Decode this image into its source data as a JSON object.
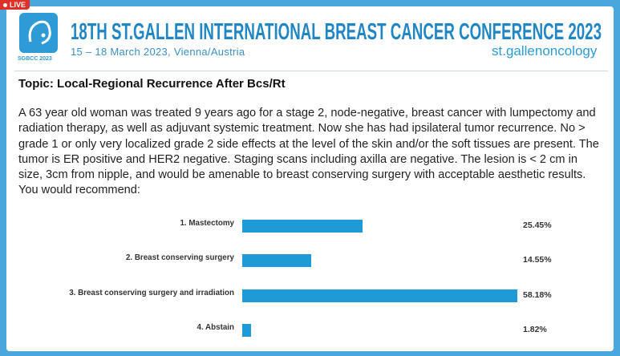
{
  "live_badge": "LIVE",
  "header": {
    "logo_caption": "SGBCC 2023",
    "title": "18TH ST.GALLEN INTERNATIONAL BREAST CANCER CONFERENCE 2023",
    "subtitle": "15 – 18 March 2023, Vienna/Austria",
    "brand": "st.gallenoncology"
  },
  "topic": "Topic: Local-Regional Recurrence After Bcs/Rt",
  "question": "A 63 year old woman was treated 9 years ago for a stage 2, node-negative, breast cancer with lumpectomy and radiation therapy, as well as adjuvant systemic treatment. Now she has had ipsilateral tumor recurrence. No > grade 1 or only very localized grade 2 side effects at the level of the skin and/or the soft tissues are present. The tumor is ER positive and HER2 negative. Staging scans including axilla are negative. The lesion is < 2 cm in size, 3cm from nipple, and would be amenable to breast conserving surgery with acceptable aesthetic results. You would recommend:",
  "poll": {
    "color": "#1e9ad6",
    "options": [
      {
        "label": "1.   Mastectomy",
        "value": 25.45,
        "value_label": "25.45%"
      },
      {
        "label": "2.   Breast conserving surgery",
        "value": 14.55,
        "value_label": "14.55%"
      },
      {
        "label": "3.   Breast conserving surgery and irradiation",
        "value": 58.18,
        "value_label": "58.18%"
      },
      {
        "label": "4.   Abstain",
        "value": 1.82,
        "value_label": "1.82%"
      }
    ]
  }
}
